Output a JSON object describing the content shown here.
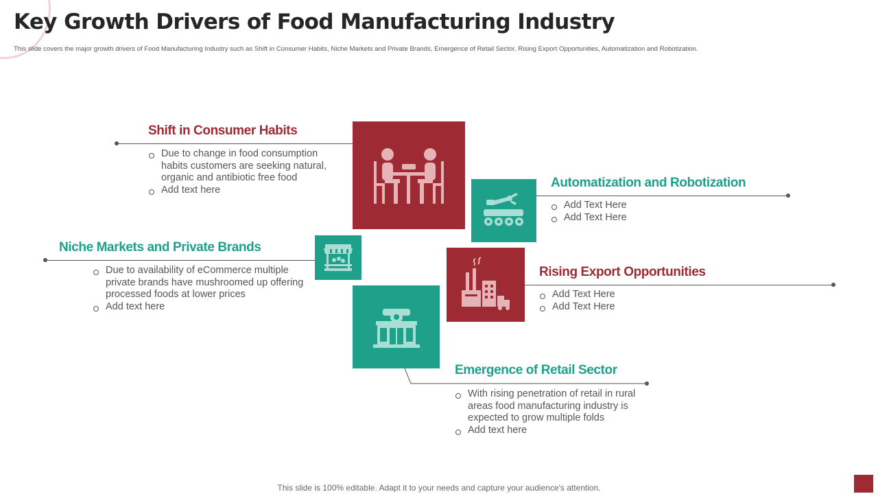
{
  "slide": {
    "title": "Key Growth Drivers of Food Manufacturing Industry",
    "subtitle": "This slide covers the major growth drivers of Food Manufacturing Industry such as Shift in Consumer Habits, Niche Markets and Private Brands, Emergence of Retail Sector, Rising Export Opportunities, Automatization and Robotization.",
    "footer": "This slide is 100% editable. Adapt it to your needs and capture your audience's attention."
  },
  "colors": {
    "red": "#9e2a33",
    "teal": "#1ea08b",
    "text": "#555555",
    "title": "#262626"
  },
  "drivers": {
    "consumer_habits": {
      "title": "Shift in Consumer Habits",
      "icon": "dining-people-icon",
      "bullets": [
        "Due to change in food consumption habits customers are seeking natural, organic and antibiotic free food",
        "Add text here"
      ]
    },
    "automatization": {
      "title": "Automatization and Robotization",
      "icon": "robot-arm-icon",
      "bullets": [
        "Add Text Here",
        "Add Text Here"
      ]
    },
    "niche_markets": {
      "title": "Niche Markets and Private Brands",
      "icon": "market-stall-icon",
      "bullets": [
        "Due to availability of eCommerce multiple private brands have mushroomed up offering processed foods at lower prices",
        "Add text here"
      ]
    },
    "export": {
      "title": "Rising Export Opportunities",
      "icon": "factory-truck-icon",
      "bullets": [
        "Add Text Here",
        "Add Text Here"
      ]
    },
    "retail": {
      "title": "Emergence of Retail Sector",
      "icon": "retail-store-icon",
      "bullets": [
        "With rising penetration of retail in rural areas food manufacturing industry is expected to grow multiple folds",
        "Add text here"
      ]
    }
  }
}
